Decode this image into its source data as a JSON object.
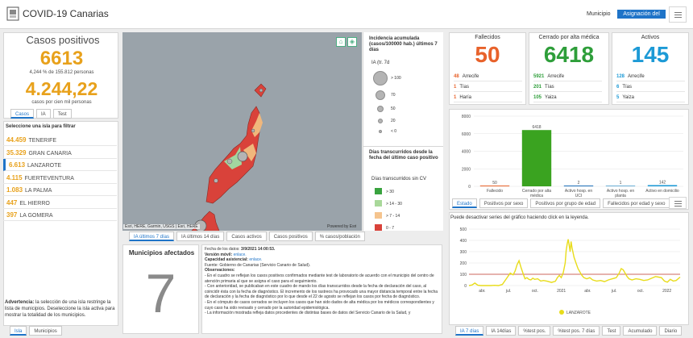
{
  "header": {
    "title": "COVID-19 Canarias",
    "links": [
      "Municipio",
      "Asignación del caso"
    ]
  },
  "casos": {
    "title": "Casos positivos",
    "total": "6613",
    "pct_line": "4,244 % de 155.812 personas",
    "rate": "4.244,22",
    "rate_label": "casos por cien mil personas",
    "tabs": [
      "Casos",
      "IA",
      "Test"
    ]
  },
  "islas": {
    "heading": "Seleccione una isla para filtrar",
    "items": [
      {
        "value": "44.459",
        "name": "TENERIFE"
      },
      {
        "value": "35.329",
        "name": "GRAN CANARIA"
      },
      {
        "value": "6.613",
        "name": "LANZAROTE"
      },
      {
        "value": "4.115",
        "name": "FUERTEVENTURA"
      },
      {
        "value": "1.083",
        "name": "LA PALMA"
      },
      {
        "value": "447",
        "name": "EL HIERRO"
      },
      {
        "value": "397",
        "name": "LA GOMERA"
      }
    ],
    "advertencia_label": "Advertencia:",
    "advertencia_text": " la selección de una isla restringe la lista de municipios. Deseleccione la isla activa para mostrar la totalidad de los municipios.",
    "bottom_tabs": [
      "Isla",
      "Municipios"
    ]
  },
  "map": {
    "attribution": "Esri, HERE, Garmin, USGS | Esri, HERE",
    "powered": "Powered by Esri",
    "home_icon": "home-icon",
    "layers_icon": "layers-icon",
    "tabs": [
      "IA últimos 7 días",
      "IA últimos 14 días",
      "Casos activos",
      "Casos positivos",
      "% casos/población"
    ],
    "colors": {
      "red": "#d9423a",
      "orange": "#f0b77c",
      "green": "#a2d5a0",
      "sea": "#9aa3aa"
    }
  },
  "legend": {
    "title1": "Incidencia acumulada (casos/100000 hab.) últimos 7 días",
    "sub1": "IA (tr. 7d",
    "sizes": [
      "> 100",
      "70",
      "50",
      "20",
      "< 0"
    ],
    "title2": "Días transcurridos desde la fecha del último caso positivo",
    "sub2": "Días transcurridos sin CV",
    "classes": [
      {
        "label": "> 30",
        "color": "#39a33f"
      },
      {
        "label": "> 14 - 30",
        "color": "#a9d89a"
      },
      {
        "label": "> 7 - 14",
        "color": "#f5c48e"
      },
      {
        "label": "0 - 7",
        "color": "#d9423a"
      }
    ]
  },
  "stats": [
    {
      "title": "Fallecidos",
      "value": "50",
      "color": "#e8622b",
      "rows": [
        {
          "v": "48",
          "n": "Arrecife"
        },
        {
          "v": "1",
          "n": "Tías"
        },
        {
          "v": "1",
          "n": "Haría"
        }
      ]
    },
    {
      "title": "Cerrado por alta médica",
      "value": "6418",
      "color": "#2e9e3a",
      "rows": [
        {
          "v": "5921",
          "n": "Arrecife"
        },
        {
          "v": "201",
          "n": "Tías"
        },
        {
          "v": "105",
          "n": "Yaiza"
        }
      ]
    },
    {
      "title": "Activos",
      "value": "145",
      "color": "#1d9ad6",
      "rows": [
        {
          "v": "128",
          "n": "Arrecife"
        },
        {
          "v": "6",
          "n": "Tías"
        },
        {
          "v": "5",
          "n": "Yaiza"
        }
      ]
    }
  ],
  "estado_chart": {
    "tabs": [
      "Estado",
      "Positivos por sexo",
      "Positivos por grupo de edad",
      "Fallecidos por edad y sexo"
    ],
    "menu_icon": "menu-icon"
  },
  "chart_data": [
    {
      "type": "bar",
      "categories": [
        "Fallecido",
        "Cerrado por alta médica",
        "Activo hosp. en UCI",
        "Activo hosp. en planta",
        "Activo en domicilio"
      ],
      "values": [
        50,
        6418,
        2,
        1,
        142
      ],
      "colors": [
        "#e8622b",
        "#3aa320",
        "#1d6fb8",
        "#6aaed6",
        "#1d9ad6"
      ],
      "ylim": [
        0,
        8000
      ],
      "yticks": [
        0,
        2000,
        4000,
        6000,
        8000
      ]
    },
    {
      "type": "line",
      "title": "",
      "info": "Puede desactivar series del gráfico haciendo click en la leyenda.",
      "series": [
        {
          "name": "LANZAROTE",
          "color": "#e8dc1a"
        }
      ],
      "x_labels": [
        "abr.",
        "jul.",
        "oct.",
        "2021",
        "abr.",
        "jul.",
        "oct.",
        "2022"
      ],
      "ylim": [
        0,
        500
      ],
      "yticks": [
        0,
        100,
        200,
        300,
        400,
        500
      ],
      "reference_line": 100,
      "points": [
        [
          0,
          0
        ],
        [
          3,
          5
        ],
        [
          6,
          22
        ],
        [
          9,
          3
        ],
        [
          12,
          0
        ],
        [
          22,
          0
        ],
        [
          26,
          2
        ],
        [
          30,
          0
        ],
        [
          34,
          10
        ],
        [
          38,
          60
        ],
        [
          42,
          110
        ],
        [
          45,
          95
        ],
        [
          47,
          130
        ],
        [
          49,
          185
        ],
        [
          51,
          220
        ],
        [
          53,
          160
        ],
        [
          55,
          110
        ],
        [
          57,
          60
        ],
        [
          59,
          70
        ],
        [
          61,
          55
        ],
        [
          63,
          50
        ],
        [
          65,
          65
        ],
        [
          67,
          55
        ],
        [
          70,
          60
        ],
        [
          73,
          40
        ],
        [
          76,
          45
        ],
        [
          80,
          38
        ],
        [
          84,
          28
        ],
        [
          88,
          38
        ],
        [
          90,
          70
        ],
        [
          92,
          90
        ],
        [
          94,
          70
        ],
        [
          96,
          115
        ],
        [
          98,
          200
        ],
        [
          99,
          310
        ],
        [
          100,
          370
        ],
        [
          101,
          410
        ],
        [
          102,
          360
        ],
        [
          103,
          300
        ],
        [
          104,
          390
        ],
        [
          105,
          330
        ],
        [
          107,
          250
        ],
        [
          109,
          200
        ],
        [
          111,
          150
        ],
        [
          113,
          120
        ],
        [
          115,
          90
        ],
        [
          117,
          70
        ],
        [
          120,
          60
        ],
        [
          123,
          70
        ],
        [
          126,
          50
        ],
        [
          130,
          40
        ],
        [
          134,
          45
        ],
        [
          138,
          35
        ],
        [
          142,
          50
        ],
        [
          146,
          60
        ],
        [
          150,
          70
        ],
        [
          153,
          110
        ],
        [
          155,
          150
        ],
        [
          157,
          140
        ],
        [
          159,
          110
        ],
        [
          161,
          80
        ],
        [
          163,
          60
        ],
        [
          166,
          50
        ],
        [
          170,
          60
        ],
        [
          174,
          55
        ],
        [
          178,
          45
        ],
        [
          182,
          50
        ],
        [
          186,
          65
        ],
        [
          190,
          80
        ],
        [
          193,
          75
        ],
        [
          196,
          70
        ],
        [
          199,
          40
        ],
        [
          202,
          30
        ],
        [
          205,
          55
        ],
        [
          208,
          40
        ],
        [
          211,
          45
        ],
        [
          215,
          75
        ]
      ],
      "tabs": [
        "IA 7 días",
        "IA 14días",
        "%test pos.",
        "%test pos. 7 días",
        "Test",
        "Acumulado",
        "Diario"
      ]
    }
  ],
  "municipios": {
    "title": "Municipios afectados",
    "count": "7"
  },
  "notas": {
    "fecha_label": "Fecha de los datos: ",
    "fecha_value": "3/9/2021 14:00:53.",
    "version_label": "Versión móvil: ",
    "version_link": "enlace.",
    "capacidad_label": "Capacidad asistencial: ",
    "capacidad_link": "enlace.",
    "fuente": "Fuente: Gobierno de Canarias (Servicio Canario de Salud).",
    "obs_label": "Observaciones:",
    "obs1": "- En el cuadro se reflejan los casos positivos confirmados mediante test de laboratorio de acuerdo con el municipio del centro de atención primaria al que se asigna el caso para el seguimiento.",
    "obs2": "- Con anterioridad, se publicaban en este cuadro de mando los días transcurridos desde la fecha de declaración del caso, al coincidir ésta con la fecha de diagnóstico. El incremento de los rastreos ha provocado una mayor distancia temporal entre la fecha de declaración y la fecha de diagnóstico por lo que desde el 22 de agosto se reflejan los casos por fecha de diagnóstico.",
    "obs3": "- En el cómputo de casos cerrados se incluyen los casos que han sido dados de alta médica por los médicos correspondientes y cuyo caso ha sido revisado y cerrado por la autoridad epidemiológica.",
    "obs4": "- La información mostrada refleja datos procedentes de distintas bases de datos del Servicio Canario de la Salud, y"
  }
}
